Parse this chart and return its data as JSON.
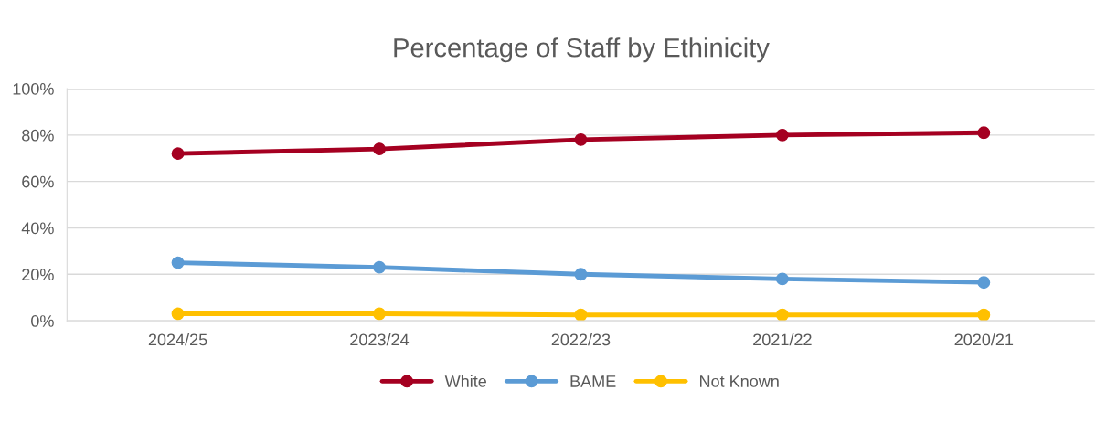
{
  "chart_data": {
    "type": "line",
    "title": "Percentage of Staff by Ethinicity",
    "categories": [
      "2024/25",
      "2023/24",
      "2022/23",
      "2021/22",
      "2020/21"
    ],
    "series": [
      {
        "name": "White",
        "color": "#a50021",
        "values": [
          72,
          74,
          78,
          80,
          81
        ]
      },
      {
        "name": "BAME",
        "color": "#5b9bd5",
        "values": [
          25,
          23,
          20,
          18,
          16.5
        ]
      },
      {
        "name": "Not Known",
        "color": "#ffc000",
        "values": [
          3,
          3,
          2.5,
          2.5,
          2.5
        ]
      }
    ],
    "ylim": [
      0,
      100
    ],
    "yticks": [
      {
        "value": 0,
        "label": "0%"
      },
      {
        "value": 20,
        "label": "20%"
      },
      {
        "value": 40,
        "label": "40%"
      },
      {
        "value": 60,
        "label": "60%"
      },
      {
        "value": 80,
        "label": "80%"
      },
      {
        "value": 100,
        "label": "100%"
      }
    ],
    "grid": "y",
    "legend": "bottom",
    "marker": "circle",
    "line_style": "solid"
  }
}
